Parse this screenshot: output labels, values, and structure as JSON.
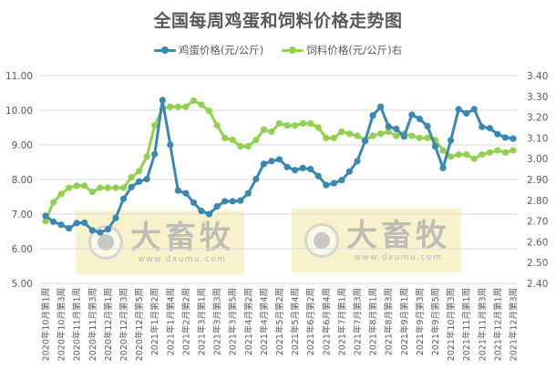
{
  "title": "全国每周鸡蛋和饲料价格走势图",
  "legend": {
    "egg": "鸡蛋价格(元/公斤)",
    "feed": "饲料价格(元/公斤)右"
  },
  "colors": {
    "egg": "#3A87B2",
    "feed": "#92D050",
    "grid": "#D9D9D9",
    "text": "#595959",
    "watermark_bg": "#F2EAAA"
  },
  "watermark": {
    "brand": "大畜牧",
    "url": "www.dxumu.com"
  },
  "chart_data": {
    "type": "line",
    "title": "全国每周鸡蛋和饲料价格走势图",
    "xlabel": "",
    "ylabel": "鸡蛋价格(元/公斤)",
    "y2label": "饲料价格(元/公斤)",
    "ylim": [
      5.0,
      11.0
    ],
    "y2lim": [
      2.4,
      3.4
    ],
    "yticks": [
      "5.00",
      "6.00",
      "7.00",
      "8.00",
      "9.00",
      "10.00",
      "11.00"
    ],
    "y2ticks": [
      "2.40",
      "2.50",
      "2.60",
      "2.70",
      "2.80",
      "2.90",
      "3.00",
      "3.10",
      "3.20",
      "3.30",
      "3.40"
    ],
    "grid": true,
    "legend_position": "top",
    "x_tick_labels": [
      "2020年10月第1周",
      "2020年10月第3周",
      "2020年11月第1周",
      "2020年11月第3周",
      "2020年12月第1周",
      "2020年12月第3周",
      "2020年12月第5周",
      "2021年1月第2周",
      "2021年1月第4周",
      "2021年2月第2周",
      "2021年3月第1周",
      "2021年3月第3周",
      "2021年3月第5周",
      "2021年4月第2周",
      "2021年4月第4周",
      "2021年5月第2周",
      "2021年5月第4周",
      "2021年6月第2周",
      "2021年6月第4周",
      "2021年7月第1周",
      "2021年7月第3周",
      "2021年8月第1周",
      "2021年8月第3周",
      "2021年9月第1周",
      "2021年9月第3周",
      "2021年9月第5周",
      "2021年10月第3周",
      "2021年11月第1周",
      "2021年11月第3周",
      "2021年12月第1周",
      "2021年12月第3周"
    ],
    "x_tick_every": 2,
    "point_count": 61,
    "series": [
      {
        "name": "鸡蛋价格(元/公斤)",
        "axis": "left",
        "values": [
          6.95,
          6.78,
          6.69,
          6.59,
          6.74,
          6.75,
          6.53,
          6.47,
          6.56,
          6.89,
          7.44,
          7.78,
          7.94,
          8.01,
          8.73,
          10.29,
          9.0,
          7.68,
          7.6,
          7.33,
          7.09,
          7.0,
          7.22,
          7.37,
          7.37,
          7.39,
          7.6,
          8.01,
          8.45,
          8.53,
          8.58,
          8.36,
          8.27,
          8.33,
          8.3,
          8.1,
          7.84,
          7.89,
          7.98,
          8.23,
          8.53,
          9.11,
          9.85,
          10.1,
          9.53,
          9.46,
          9.24,
          9.87,
          9.75,
          9.54,
          8.96,
          8.33,
          9.13,
          10.03,
          9.91,
          10.03,
          9.52,
          9.48,
          9.31,
          9.21,
          9.18
        ]
      },
      {
        "name": "饲料价格(元/公斤)",
        "axis": "right",
        "values": [
          2.7,
          2.79,
          2.83,
          2.86,
          2.87,
          2.87,
          2.84,
          2.86,
          2.86,
          2.86,
          2.86,
          2.91,
          2.94,
          3.01,
          3.16,
          3.24,
          3.25,
          3.25,
          3.25,
          3.28,
          3.26,
          3.23,
          3.16,
          3.1,
          3.09,
          3.06,
          3.06,
          3.09,
          3.14,
          3.13,
          3.17,
          3.16,
          3.16,
          3.17,
          3.17,
          3.15,
          3.1,
          3.1,
          3.13,
          3.12,
          3.11,
          3.09,
          3.11,
          3.12,
          3.13,
          3.11,
          3.12,
          3.11,
          3.1,
          3.1,
          3.09,
          3.04,
          3.01,
          3.02,
          3.02,
          3.0,
          3.02,
          3.03,
          3.04,
          3.03,
          3.04
        ]
      }
    ]
  }
}
